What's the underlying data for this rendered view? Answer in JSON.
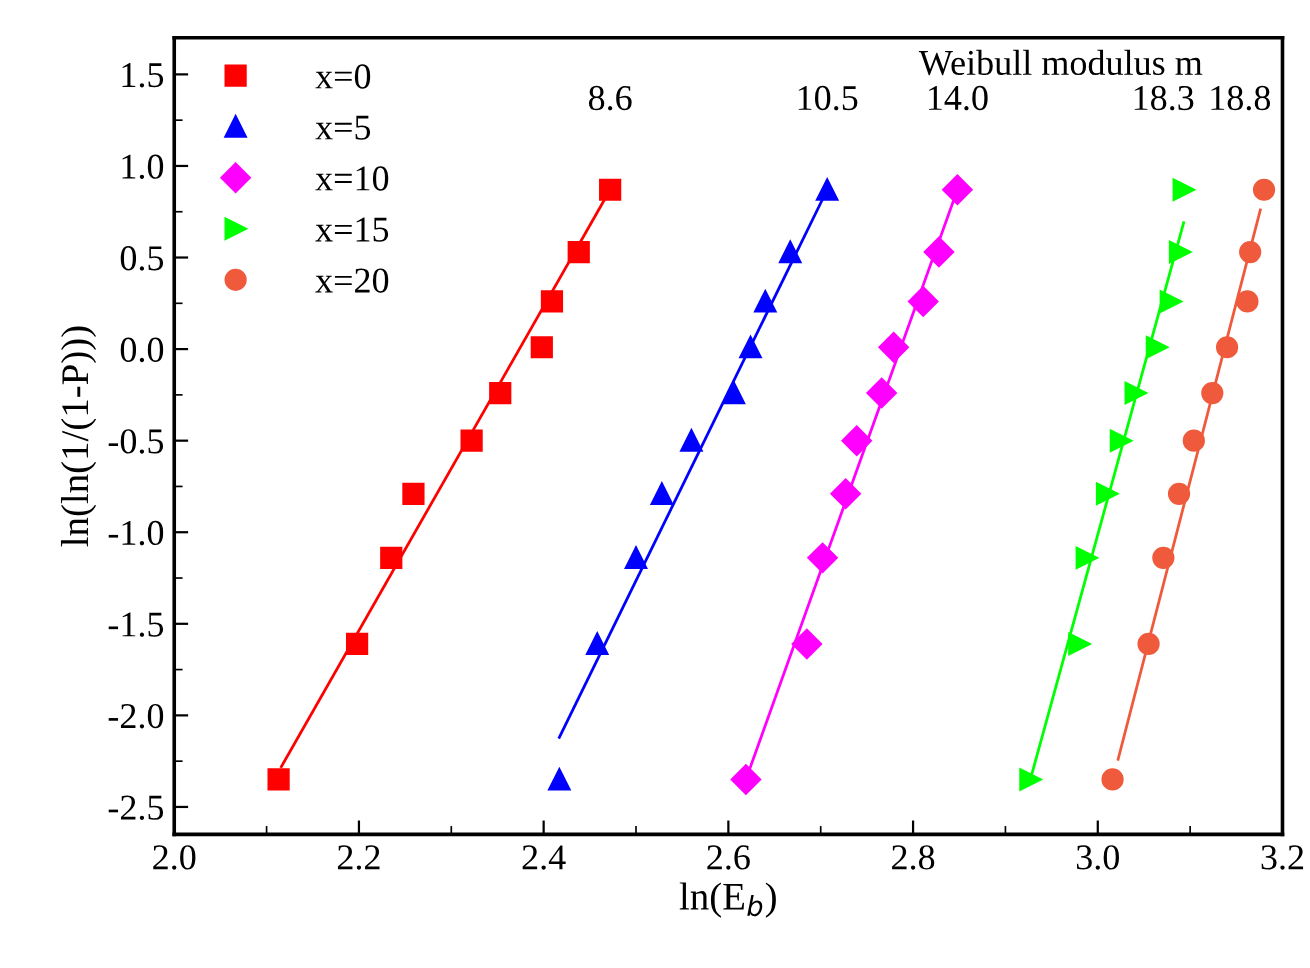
{
  "chart_data": {
    "type": "scatter",
    "xlabel": "ln(E$_{b}$)",
    "ylabel": "ln(ln(1/(1-P)))",
    "legend_title": "Weibull modulus m",
    "xlim": [
      2.0,
      3.2
    ],
    "ylim": [
      -2.65,
      1.7
    ],
    "xticks": [
      {
        "value": 2,
        "label": "2.0"
      },
      2.2,
      2.4,
      2.6,
      2.8,
      {
        "value": 3,
        "label": "3.0"
      },
      3.2
    ],
    "yticks": [
      -2.5,
      {
        "value": -2,
        "label": "-2.0"
      },
      -1.5,
      {
        "value": -1,
        "label": "-1.0"
      },
      -0.5,
      {
        "value": 0,
        "label": "0.0"
      },
      0.5,
      {
        "value": 1,
        "label": "1.0"
      },
      1.5
    ],
    "legend": "top left",
    "grid": false,
    "annotations": [
      "8.6",
      "10.5",
      "14.0",
      "18.3",
      "18.8"
    ],
    "series": [
      {
        "name": "x=0",
        "color": "#ff0000",
        "marker": "square",
        "x": [
          2.113,
          2.198,
          2.235,
          2.259,
          2.322,
          2.353,
          2.398,
          2.409,
          2.438,
          2.472
        ],
        "values": [
          -2.35,
          -1.61,
          -1.14,
          -0.79,
          -0.5,
          -0.24,
          0.01,
          0.26,
          0.53,
          0.87
        ]
      },
      {
        "name": "x=5",
        "color": "#0000ff",
        "marker": "triangle",
        "x": [
          2.417,
          2.458,
          2.5,
          2.528,
          2.56,
          2.606,
          2.624,
          2.64,
          2.667,
          2.707
        ],
        "values": [
          -2.35,
          -1.61,
          -1.14,
          -0.79,
          -0.5,
          -0.24,
          0.01,
          0.26,
          0.53,
          0.87
        ]
      },
      {
        "name": "x=10",
        "color": "#ff00ff",
        "marker": "diamond",
        "x": [
          2.619,
          2.685,
          2.702,
          2.727,
          2.739,
          2.766,
          2.779,
          2.811,
          2.828,
          2.848
        ],
        "values": [
          -2.35,
          -1.61,
          -1.14,
          -0.79,
          -0.5,
          -0.24,
          0.01,
          0.26,
          0.53,
          0.87
        ]
      },
      {
        "name": "x=15",
        "color": "#00ff00",
        "marker": "triangle-right",
        "x": [
          2.927,
          2.98,
          2.988,
          3.01,
          3.025,
          3.041,
          3.064,
          3.079,
          3.089,
          3.093
        ],
        "values": [
          -2.35,
          -1.61,
          -1.14,
          -0.79,
          -0.5,
          -0.24,
          0.01,
          0.26,
          0.53,
          0.87
        ]
      },
      {
        "name": "x=20",
        "color": "#f05a3c",
        "marker": "circle",
        "x": [
          3.016,
          3.055,
          3.071,
          3.088,
          3.104,
          3.124,
          3.14,
          3.162,
          3.165,
          3.18
        ],
        "values": [
          -2.35,
          -1.61,
          -1.14,
          -0.79,
          -0.5,
          -0.24,
          0.01,
          0.26,
          0.53,
          0.87
        ]
      },
      {
        "type": "line",
        "color": "#ff0000",
        "x": [
          2.116,
          2.472
        ],
        "values": [
          -2.28,
          0.87
        ]
      },
      {
        "type": "line",
        "color": "#0000ff",
        "x": [
          2.417,
          2.707
        ],
        "values": [
          -2.12,
          0.87
        ]
      },
      {
        "type": "line",
        "color": "#ff00ff",
        "x": [
          2.619,
          2.848
        ],
        "values": [
          -2.35,
          0.87
        ]
      },
      {
        "type": "line",
        "color": "#00ff00",
        "x": [
          2.927,
          3.093
        ],
        "values": [
          -2.35,
          0.69
        ]
      },
      {
        "type": "line",
        "color": "#f05a3c",
        "x": [
          3.022,
          3.176
        ],
        "values": [
          -2.24,
          0.76
        ]
      }
    ]
  }
}
